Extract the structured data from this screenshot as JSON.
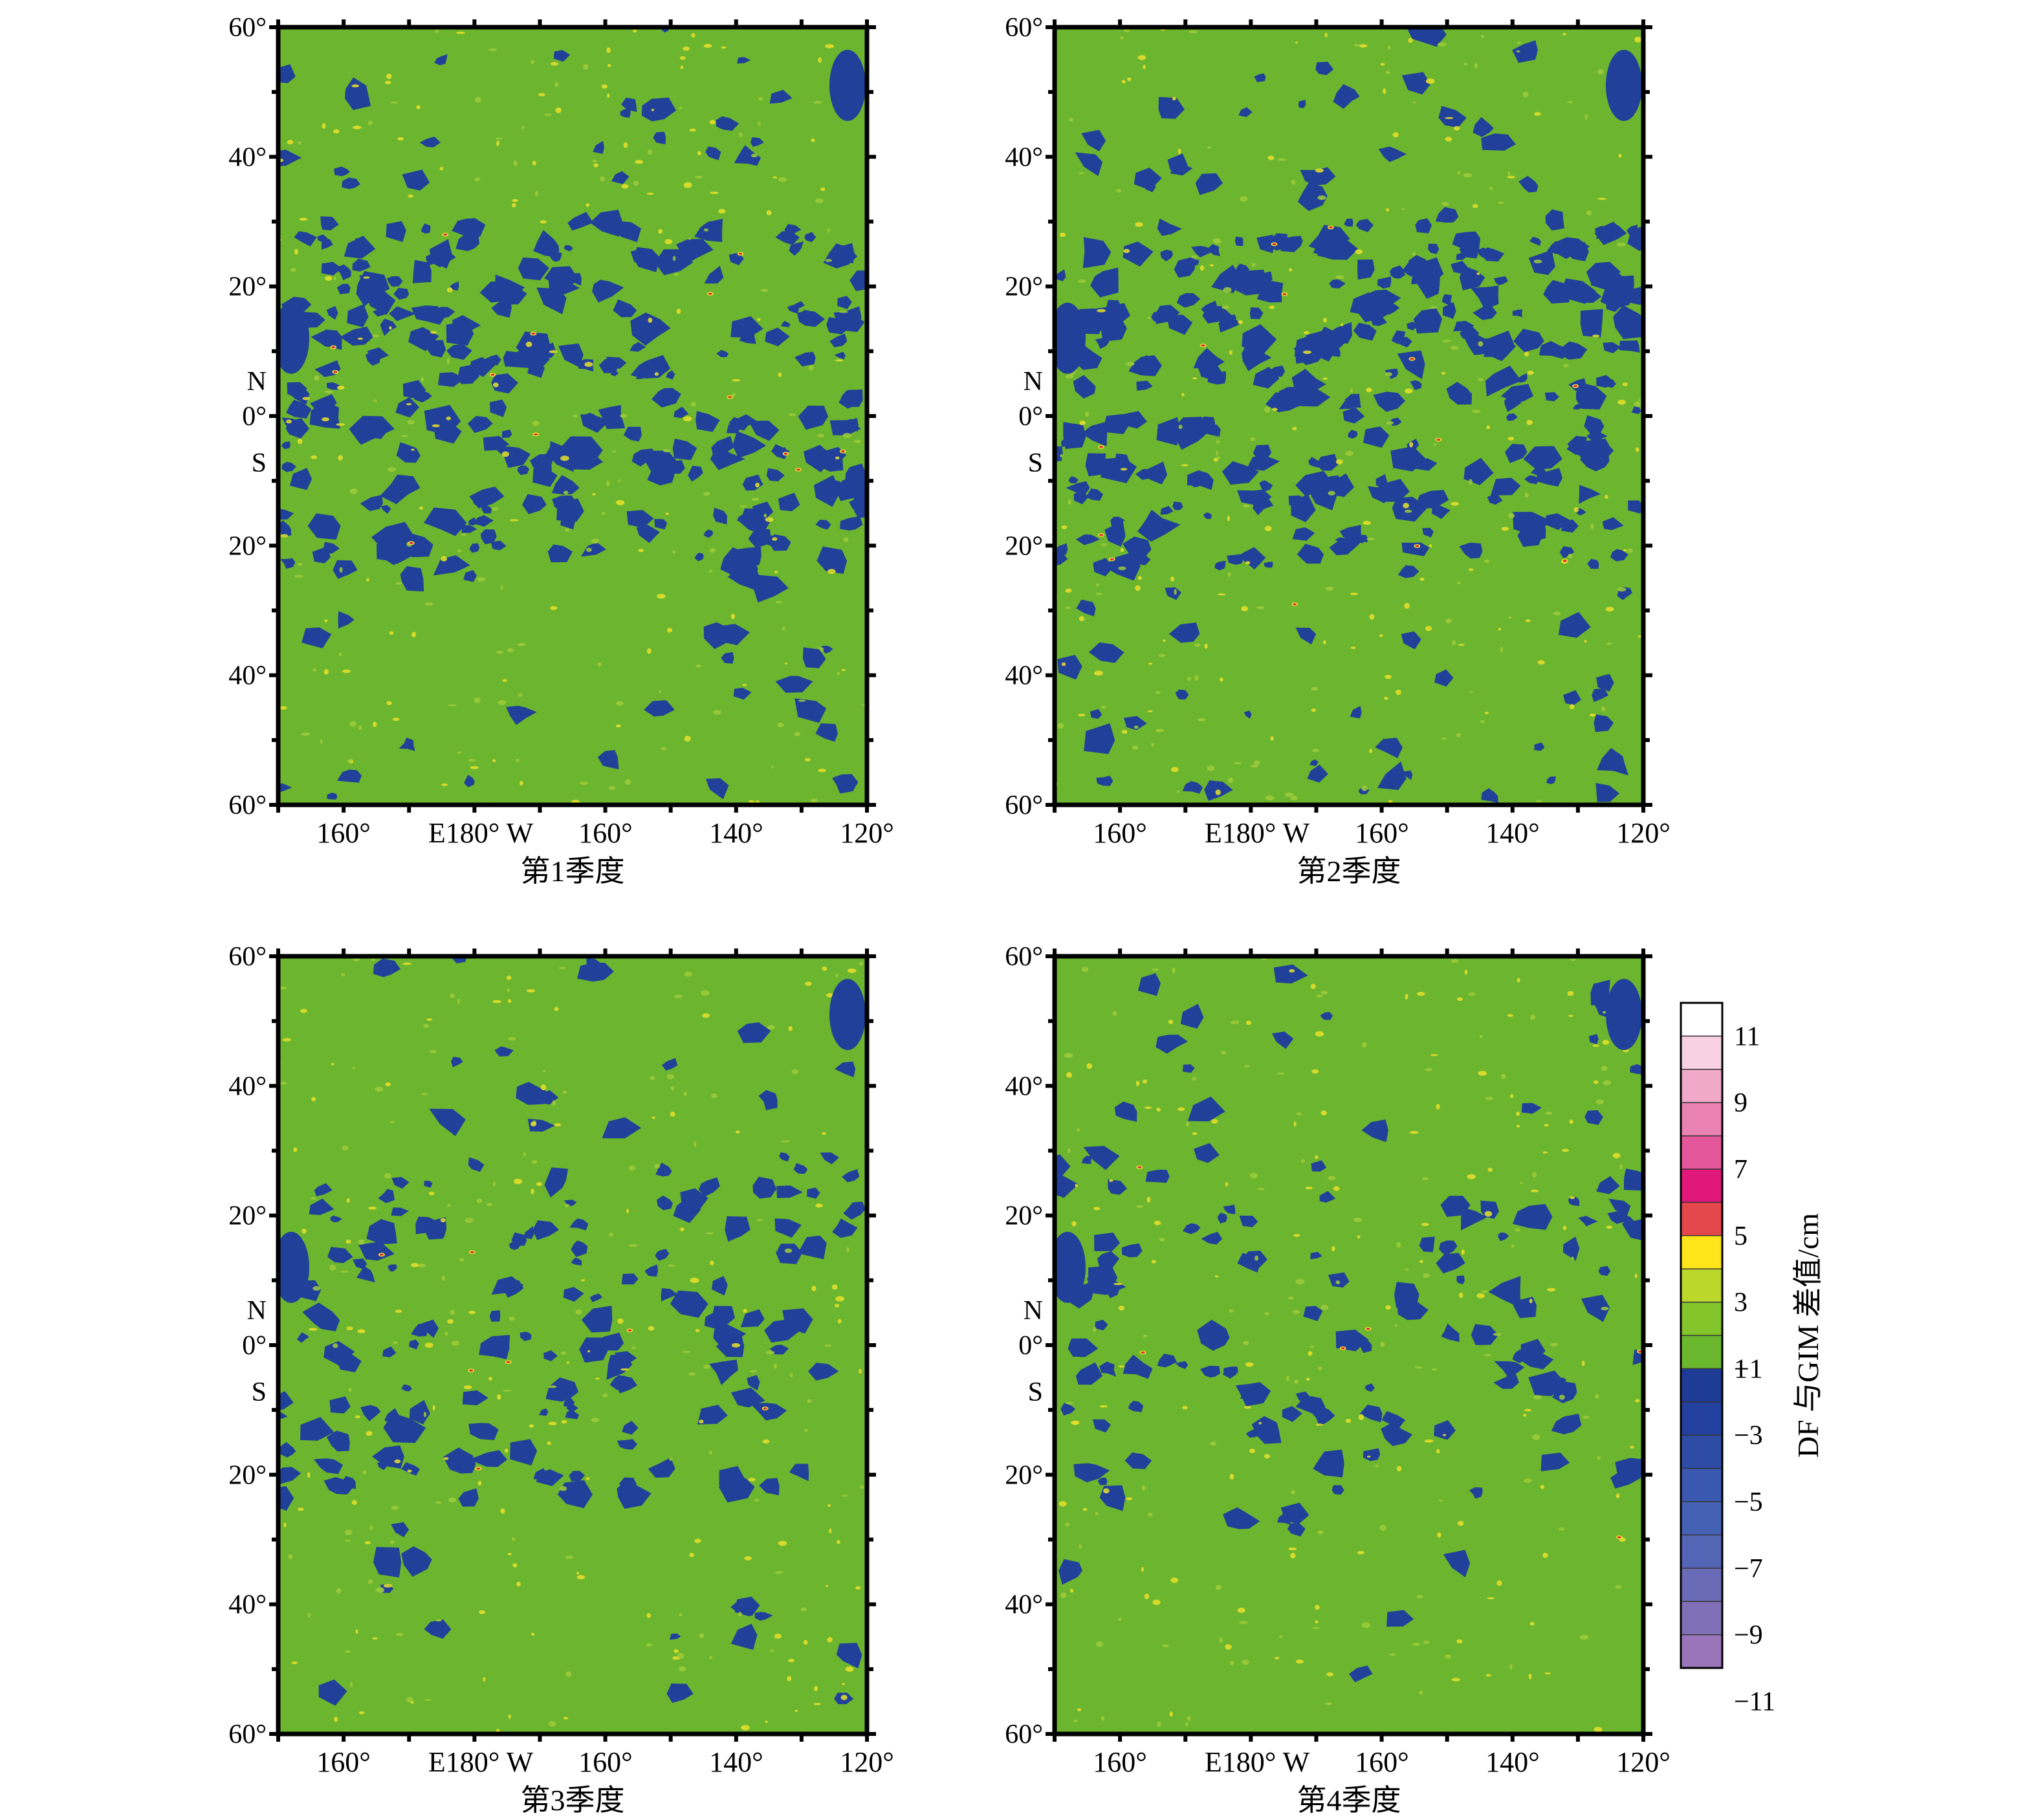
{
  "figure": {
    "panels": [
      {
        "caption": "第1季度",
        "density": 0.32
      },
      {
        "caption": "第2季度",
        "density": 0.36
      },
      {
        "caption": "第3季度",
        "density": 0.18
      },
      {
        "caption": "第4季度",
        "density": 0.14
      }
    ],
    "lat_ticks": [
      "60°",
      "40°",
      "20°",
      "N",
      "0°",
      "S",
      "20°",
      "40°",
      "60°"
    ],
    "lon_ticks": [
      "160°",
      "E180° W",
      "160°",
      "140°",
      "120°"
    ],
    "colorbar": {
      "label": "DF 与GIM 差值/cm",
      "tick_labels": [
        "11",
        "9",
        "7",
        "5",
        "3",
        "1",
        "−1",
        "−3",
        "−5",
        "−7",
        "−9",
        "−11"
      ],
      "colors": [
        "#ffffff",
        "#f7d0e2",
        "#f0a9c9",
        "#ea82b2",
        "#e4579a",
        "#e0187a",
        "#e5484c",
        "#ffe51a",
        "#bcd72c",
        "#83c52a",
        "#6bb82f",
        "#1e3c96",
        "#23409e",
        "#2e4ba6",
        "#3a58b0",
        "#4561b4",
        "#5365b5",
        "#6a6bb6",
        "#8070b7",
        "#9b75b9"
      ]
    }
  },
  "chart_data": [
    {
      "type": "heatmap",
      "title": "第1季度",
      "xlabel": "",
      "ylabel": "",
      "x_range_deg": [
        150,
        240
      ],
      "y_range_deg": [
        -60,
        60
      ],
      "x_tick_labels": [
        "160°",
        "E180° W",
        "160°",
        "140°",
        "120°"
      ],
      "y_tick_labels": [
        "60°",
        "40°",
        "20°",
        "0°",
        "20°",
        "40°",
        "60°"
      ],
      "value_range": [
        -11,
        11
      ],
      "units": "cm",
      "dominant_value_band": [
        -1,
        1
      ]
    },
    {
      "type": "heatmap",
      "title": "第2季度",
      "xlabel": "",
      "ylabel": "",
      "x_range_deg": [
        150,
        240
      ],
      "y_range_deg": [
        -60,
        60
      ],
      "x_tick_labels": [
        "160°",
        "E180° W",
        "160°",
        "140°",
        "120°"
      ],
      "y_tick_labels": [
        "60°",
        "40°",
        "20°",
        "0°",
        "20°",
        "40°",
        "60°"
      ],
      "value_range": [
        -11,
        11
      ],
      "units": "cm",
      "dominant_value_band": [
        -1,
        1
      ]
    },
    {
      "type": "heatmap",
      "title": "第3季度",
      "xlabel": "",
      "ylabel": "",
      "x_range_deg": [
        150,
        240
      ],
      "y_range_deg": [
        -60,
        60
      ],
      "x_tick_labels": [
        "160°",
        "E180° W",
        "160°",
        "140°",
        "120°"
      ],
      "y_tick_labels": [
        "60°",
        "40°",
        "20°",
        "0°",
        "20°",
        "40°",
        "60°"
      ],
      "value_range": [
        -11,
        11
      ],
      "units": "cm",
      "dominant_value_band": [
        -1,
        1
      ]
    },
    {
      "type": "heatmap",
      "title": "第4季度",
      "xlabel": "",
      "ylabel": "",
      "x_range_deg": [
        150,
        240
      ],
      "y_range_deg": [
        -60,
        60
      ],
      "x_tick_labels": [
        "160°",
        "E180° W",
        "160°",
        "140°",
        "120°"
      ],
      "y_tick_labels": [
        "60°",
        "40°",
        "20°",
        "0°",
        "20°",
        "40°",
        "60°"
      ],
      "value_range": [
        -11,
        11
      ],
      "units": "cm",
      "dominant_value_band": [
        -1,
        1
      ]
    }
  ]
}
